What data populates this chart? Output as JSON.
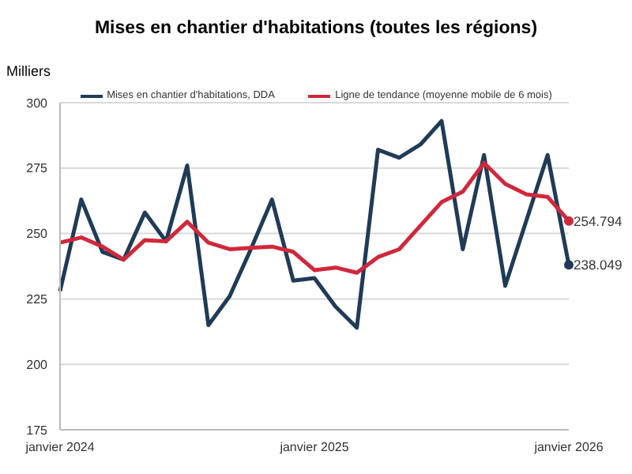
{
  "chart_data": {
    "type": "line",
    "title": "Mises en chantier d'habitations (toutes les régions)",
    "ylabel": "Milliers",
    "categories": [
      "janvier 2024",
      null,
      null,
      null,
      null,
      null,
      null,
      null,
      null,
      null,
      null,
      null,
      "janvier 2025",
      null,
      null,
      null,
      null,
      null,
      null,
      null,
      null,
      null,
      null,
      null,
      "janvier 2026"
    ],
    "series": [
      {
        "name": "Mises en chantier d'habitations, DDA",
        "color": "#1f3b57",
        "values": [
          228,
          263,
          243,
          240,
          258,
          247,
          276,
          215,
          226,
          244,
          263,
          232,
          233,
          222,
          214,
          282,
          279,
          284,
          293,
          244,
          280,
          230,
          255,
          280,
          238.049
        ],
        "value_labels": [
          null,
          null,
          null,
          null,
          null,
          null,
          null,
          null,
          null,
          null,
          null,
          null,
          null,
          null,
          null,
          null,
          null,
          null,
          null,
          null,
          null,
          null,
          null,
          null,
          "238.049"
        ]
      },
      {
        "name": "Ligne de tendance (moyenne mobile de 6 mois)",
        "color": "#d0283a",
        "values": [
          246.5,
          248.5,
          245,
          240,
          247.5,
          247,
          254.5,
          246.5,
          244,
          244.5,
          245,
          243,
          236,
          237,
          235,
          241,
          244,
          253,
          262,
          266,
          277,
          269,
          265,
          264,
          254.794
        ],
        "value_labels": [
          null,
          null,
          null,
          null,
          null,
          null,
          null,
          null,
          null,
          null,
          null,
          null,
          null,
          null,
          null,
          null,
          null,
          null,
          null,
          null,
          null,
          null,
          null,
          null,
          "254.794"
        ]
      }
    ],
    "ylim": [
      175,
      300
    ],
    "yticks": [
      175,
      200,
      225,
      250,
      275,
      300
    ],
    "grid": "y",
    "legend": "top",
    "line_style": "solid"
  }
}
